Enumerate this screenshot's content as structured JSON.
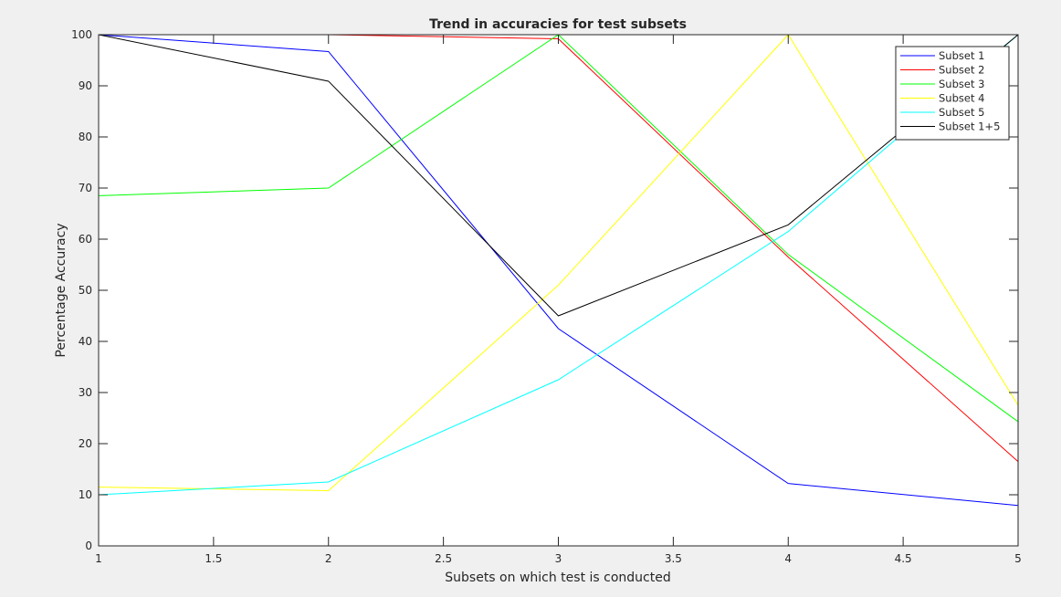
{
  "chart_data": {
    "type": "line",
    "title": "Trend in accuracies for test subsets",
    "xlabel": "Subsets on which test is conducted",
    "ylabel": "Percentage Accuracy",
    "xlim": [
      1,
      5
    ],
    "ylim": [
      0,
      100
    ],
    "xticks": [
      1,
      1.5,
      2,
      2.5,
      3,
      3.5,
      4,
      4.5,
      5
    ],
    "xtick_labels": [
      "1",
      "1.5",
      "2",
      "2.5",
      "3",
      "3.5",
      "4",
      "4.5",
      "5"
    ],
    "yticks": [
      0,
      10,
      20,
      30,
      40,
      50,
      60,
      70,
      80,
      90,
      100
    ],
    "ytick_labels": [
      "0",
      "10",
      "20",
      "30",
      "40",
      "50",
      "60",
      "70",
      "80",
      "90",
      "100"
    ],
    "grid": false,
    "legend_position": "top-right",
    "x": [
      1,
      2,
      3,
      4,
      5
    ],
    "series": [
      {
        "name": "Subset 1",
        "color": "#0000ff",
        "values": [
          100,
          96.7,
          42.5,
          12.2,
          7.9
        ]
      },
      {
        "name": "Subset 2",
        "color": "#ff0000",
        "values": [
          100,
          100,
          99.2,
          56.5,
          16.5
        ]
      },
      {
        "name": "Subset 3",
        "color": "#00ff00",
        "values": [
          68.5,
          70,
          100,
          57,
          24.3
        ]
      },
      {
        "name": "Subset 4",
        "color": "#ffff00",
        "values": [
          11.5,
          10.8,
          51,
          100,
          27.5
        ]
      },
      {
        "name": "Subset 5",
        "color": "#00ffff",
        "values": [
          10,
          12.5,
          32.5,
          61.5,
          100
        ]
      },
      {
        "name": "Subset 1+5",
        "color": "#000000",
        "values": [
          100,
          90.9,
          45,
          62.8,
          100
        ]
      }
    ]
  }
}
